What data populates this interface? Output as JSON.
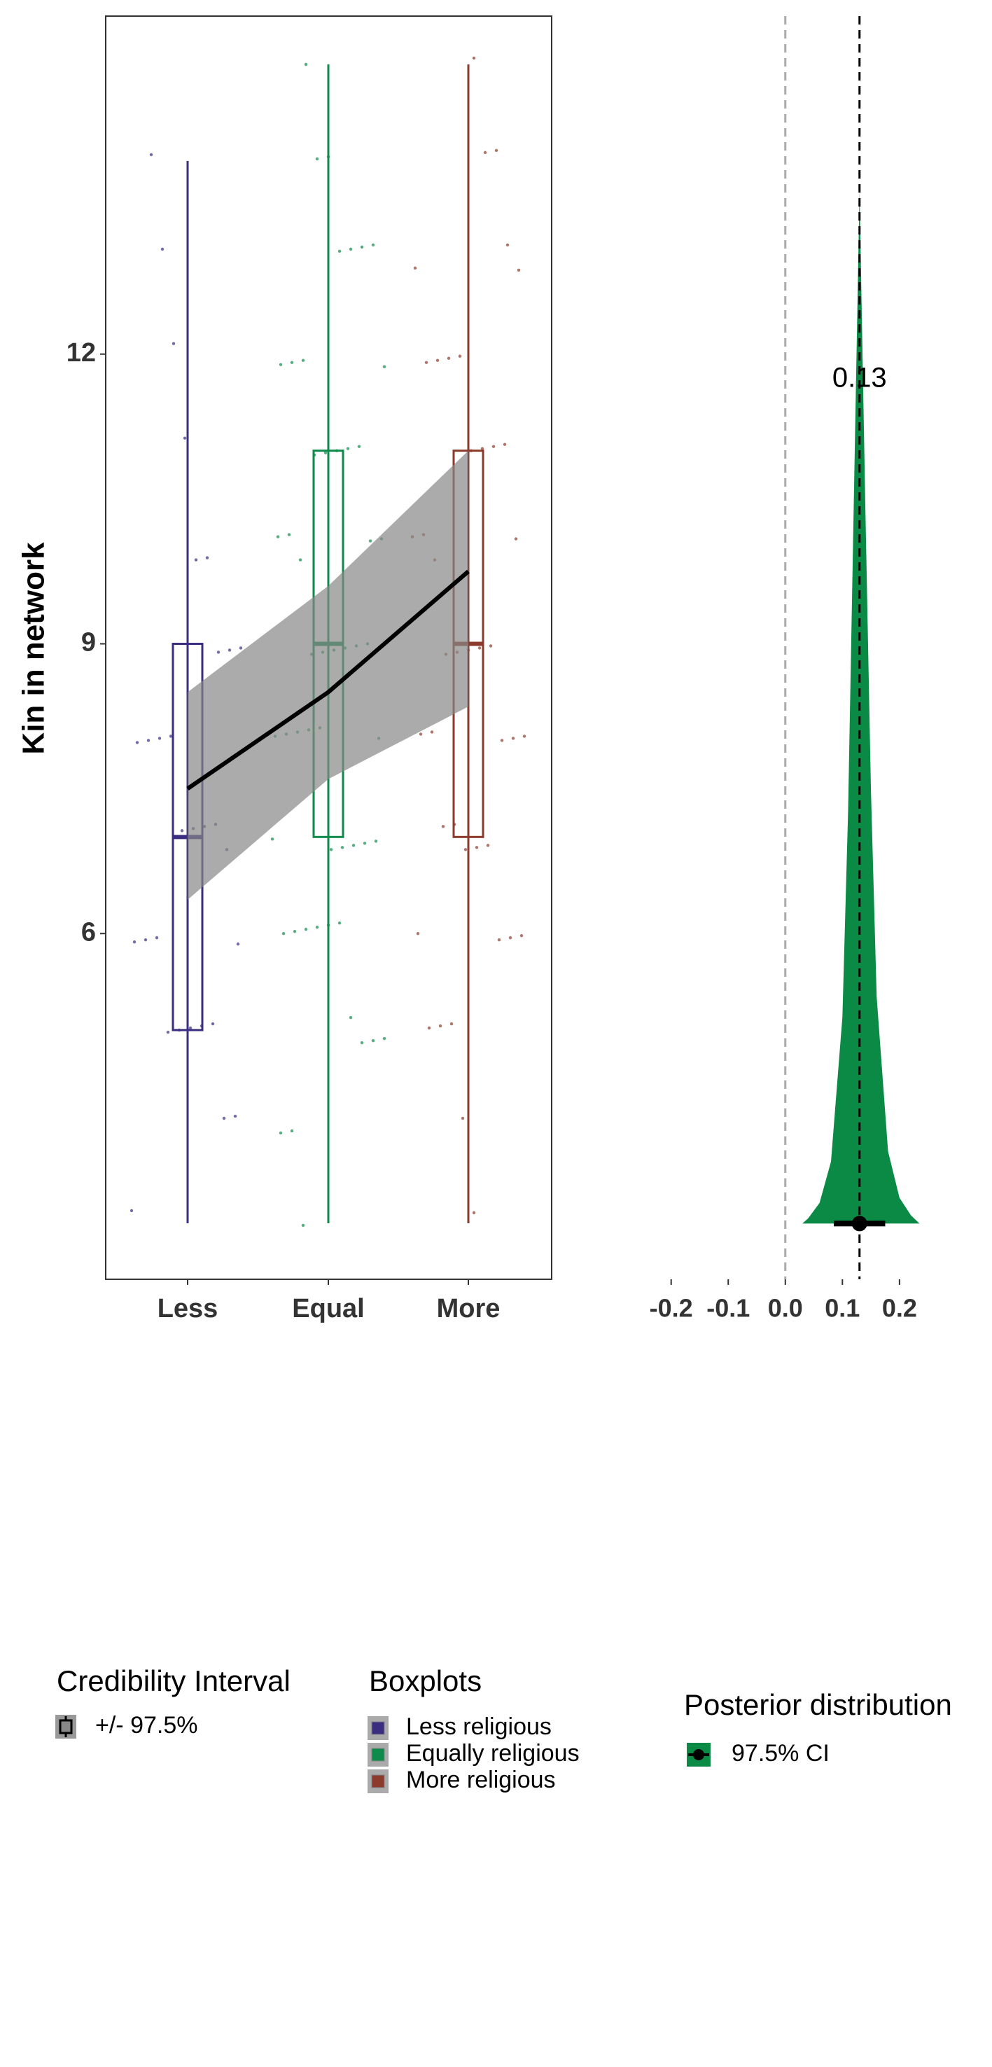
{
  "chart_data": [
    {
      "type": "boxplot",
      "ylabel": "Kin in network",
      "categories": [
        "Less",
        "Equal",
        "More"
      ],
      "colors": [
        "#3b2d80",
        "#0e8a4a",
        "#8b3a2b"
      ],
      "ylim": [
        2.42,
        15.5
      ],
      "yticks": [
        6,
        9,
        12
      ],
      "boxes": [
        {
          "low": 3,
          "q1": 5,
          "median": 7,
          "q3": 9,
          "high": 14
        },
        {
          "low": 3,
          "q1": 7,
          "median": 9,
          "q3": 11,
          "high": 15
        },
        {
          "low": 3,
          "q1": 7,
          "median": 9,
          "q3": 11,
          "high": 15
        }
      ],
      "points": [
        [
          3,
          4,
          4,
          5,
          5,
          5,
          5,
          5,
          6,
          6,
          6,
          6,
          7,
          7,
          7,
          7,
          7,
          8,
          8,
          8,
          8,
          9,
          9,
          9,
          10,
          10,
          11,
          12,
          13,
          14
        ],
        [
          3,
          4,
          4,
          5,
          5,
          5,
          5,
          6,
          6,
          6,
          6,
          6,
          6,
          7,
          7,
          7,
          7,
          7,
          7,
          8,
          8,
          8,
          8,
          8,
          8,
          9,
          9,
          9,
          9,
          9,
          9,
          10,
          10,
          10,
          10,
          10,
          11,
          11,
          11,
          11,
          11,
          12,
          12,
          12,
          12,
          13,
          13,
          13,
          13,
          14,
          14,
          15
        ],
        [
          3,
          4,
          5,
          5,
          5,
          6,
          6,
          6,
          6,
          7,
          7,
          7,
          7,
          7,
          8,
          8,
          8,
          8,
          8,
          9,
          9,
          9,
          9,
          9,
          10,
          10,
          10,
          10,
          11,
          11,
          11,
          11,
          12,
          12,
          12,
          12,
          13,
          13,
          13,
          14,
          14,
          15
        ]
      ],
      "trend": [
        7.5,
        8.5,
        9.75
      ],
      "ribbon_lower": [
        6.35,
        7.6,
        8.35
      ],
      "ribbon_upper": [
        8.5,
        9.6,
        11.0
      ]
    },
    {
      "type": "density",
      "color": "#0a8a45",
      "xlim": [
        -0.31,
        0.34
      ],
      "ylim": [
        -0.054,
        1.17
      ],
      "xticks": [
        -0.2,
        -0.1,
        {
          "value": 0,
          "label": "0.0"
        },
        0.1,
        0.2
      ],
      "x": [
        0.03,
        0.04,
        0.06,
        0.08,
        0.1,
        0.11,
        0.12,
        0.125,
        0.13,
        0.135,
        0.14,
        0.15,
        0.16,
        0.18,
        0.2,
        0.22,
        0.235
      ],
      "density": [
        0,
        0.005,
        0.02,
        0.06,
        0.2,
        0.4,
        0.7,
        0.85,
        1.0,
        0.85,
        0.7,
        0.42,
        0.22,
        0.07,
        0.025,
        0.008,
        0
      ],
      "reference": 0,
      "estimate": 0.13,
      "ci": [
        0.085,
        0.175
      ]
    }
  ],
  "legends": [
    {
      "title": "Credibility Interval",
      "items": [
        "+/- 97.5%"
      ]
    },
    {
      "title": "Boxplots",
      "items": [
        "Less religious",
        "Equally religious",
        "More religious"
      ]
    },
    {
      "title": "Posterior distribution",
      "items": [
        "97.5% CI"
      ]
    }
  ]
}
